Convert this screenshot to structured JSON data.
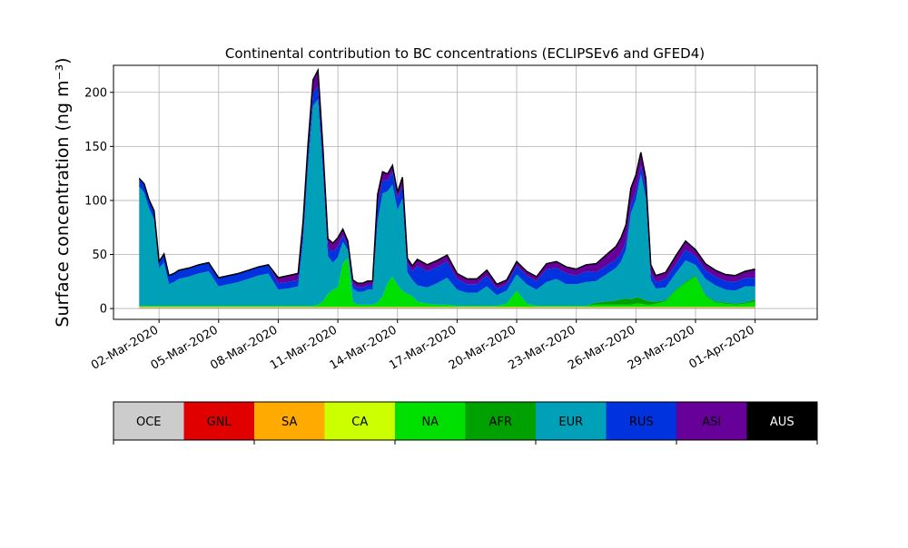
{
  "chart_data": {
    "type": "area",
    "title": "Continental contribution to BC concentrations (ECLIPSEv6 and GFED4)",
    "ylabel": "Surface concentration (ng m⁻³)",
    "xlabel": "",
    "grid": true,
    "ylim": [
      -10,
      225
    ],
    "xlim": [
      "2020-02-28 17:00",
      "2020-04-04 03:00"
    ],
    "yticks": [
      0,
      50,
      100,
      150,
      200
    ],
    "xticks": [
      {
        "date": "2020-03-02",
        "label": "02-Mar-2020"
      },
      {
        "date": "2020-03-05",
        "label": "05-Mar-2020"
      },
      {
        "date": "2020-03-08",
        "label": "08-Mar-2020"
      },
      {
        "date": "2020-03-11",
        "label": "11-Mar-2020"
      },
      {
        "date": "2020-03-14",
        "label": "14-Mar-2020"
      },
      {
        "date": "2020-03-17",
        "label": "17-Mar-2020"
      },
      {
        "date": "2020-03-20",
        "label": "20-Mar-2020"
      },
      {
        "date": "2020-03-23",
        "label": "23-Mar-2020"
      },
      {
        "date": "2020-03-26",
        "label": "26-Mar-2020"
      },
      {
        "date": "2020-03-29",
        "label": "29-Mar-2020"
      },
      {
        "date": "2020-04-01",
        "label": "01-Apr-2020"
      }
    ],
    "x": [
      "2020-03-01 00:00",
      "2020-03-01 06:00",
      "2020-03-01 12:00",
      "2020-03-01 18:00",
      "2020-03-02 00:00",
      "2020-03-02 06:00",
      "2020-03-02 12:00",
      "2020-03-02 18:00",
      "2020-03-03 00:00",
      "2020-03-03 12:00",
      "2020-03-04 00:00",
      "2020-03-04 12:00",
      "2020-03-05 00:00",
      "2020-03-05 12:00",
      "2020-03-06 00:00",
      "2020-03-06 12:00",
      "2020-03-07 00:00",
      "2020-03-07 12:00",
      "2020-03-08 00:00",
      "2020-03-08 12:00",
      "2020-03-09 00:00",
      "2020-03-09 06:00",
      "2020-03-09 12:00",
      "2020-03-09 18:00",
      "2020-03-10 00:00",
      "2020-03-10 06:00",
      "2020-03-10 12:00",
      "2020-03-10 18:00",
      "2020-03-11 00:00",
      "2020-03-11 06:00",
      "2020-03-11 12:00",
      "2020-03-11 18:00",
      "2020-03-12 00:00",
      "2020-03-12 06:00",
      "2020-03-12 12:00",
      "2020-03-12 18:00",
      "2020-03-13 00:00",
      "2020-03-13 06:00",
      "2020-03-13 12:00",
      "2020-03-13 18:00",
      "2020-03-14 00:00",
      "2020-03-14 06:00",
      "2020-03-14 12:00",
      "2020-03-14 18:00",
      "2020-03-15 00:00",
      "2020-03-15 12:00",
      "2020-03-16 00:00",
      "2020-03-16 12:00",
      "2020-03-17 00:00",
      "2020-03-17 12:00",
      "2020-03-18 00:00",
      "2020-03-18 12:00",
      "2020-03-19 00:00",
      "2020-03-19 12:00",
      "2020-03-20 00:00",
      "2020-03-20 12:00",
      "2020-03-21 00:00",
      "2020-03-21 12:00",
      "2020-03-22 00:00",
      "2020-03-22 12:00",
      "2020-03-23 00:00",
      "2020-03-23 12:00",
      "2020-03-24 00:00",
      "2020-03-24 12:00",
      "2020-03-25 00:00",
      "2020-03-25 06:00",
      "2020-03-25 12:00",
      "2020-03-25 18:00",
      "2020-03-26 00:00",
      "2020-03-26 06:00",
      "2020-03-26 12:00",
      "2020-03-26 18:00",
      "2020-03-27 00:00",
      "2020-03-27 12:00",
      "2020-03-28 00:00",
      "2020-03-28 12:00",
      "2020-03-29 00:00",
      "2020-03-29 12:00",
      "2020-03-30 00:00",
      "2020-03-30 12:00",
      "2020-03-31 00:00",
      "2020-03-31 12:00",
      "2020-04-01 00:00"
    ],
    "series": [
      {
        "name": "OCE",
        "color": "#cccccc",
        "values": [
          0.5,
          0.5,
          0.5,
          0.5,
          0.5,
          0.5,
          0.5,
          0.5,
          0.5,
          0.5,
          0.5,
          0.5,
          0.5,
          0.5,
          0.5,
          0.5,
          0.5,
          0.5,
          0.5,
          0.5,
          0.5,
          0.5,
          0.5,
          0.5,
          0.5,
          0.5,
          0.5,
          0.5,
          0.5,
          0.5,
          0.5,
          0.5,
          0.5,
          0.5,
          0.5,
          0.5,
          0.5,
          0.5,
          0.5,
          0.5,
          0.5,
          0.5,
          0.5,
          0.5,
          0.5,
          0.5,
          0.5,
          0.5,
          0.5,
          0.5,
          0.5,
          0.5,
          0.5,
          0.5,
          0.5,
          0.5,
          0.5,
          0.5,
          0.5,
          0.5,
          0.5,
          0.5,
          0.5,
          0.5,
          0.5,
          0.5,
          0.5,
          0.5,
          0.5,
          0.5,
          0.5,
          0.5,
          0.5,
          0.5,
          0.5,
          0.5,
          0.5,
          0.5,
          0.5,
          0.5,
          0.5,
          0.5,
          0.5
        ]
      },
      {
        "name": "GNL",
        "color": "#e00000",
        "values": [
          0.3,
          0.3,
          0.3,
          0.3,
          0.3,
          0.3,
          0.3,
          0.3,
          0.3,
          0.3,
          0.3,
          0.3,
          0.3,
          0.3,
          0.3,
          0.3,
          0.3,
          0.3,
          0.3,
          0.3,
          0.3,
          0.3,
          0.3,
          0.3,
          0.3,
          0.3,
          0.3,
          0.3,
          0.3,
          0.3,
          0.3,
          0.3,
          0.3,
          0.3,
          0.3,
          0.3,
          0.3,
          0.3,
          0.3,
          0.3,
          0.3,
          0.3,
          0.3,
          0.3,
          0.3,
          0.3,
          0.3,
          0.3,
          0.3,
          0.3,
          0.3,
          0.3,
          0.3,
          0.3,
          0.3,
          0.3,
          0.3,
          0.3,
          0.3,
          0.3,
          0.3,
          0.3,
          0.3,
          0.3,
          0.3,
          0.3,
          0.3,
          0.3,
          0.3,
          0.3,
          0.3,
          0.3,
          0.3,
          0.3,
          0.3,
          0.3,
          0.3,
          0.3,
          0.3,
          0.3,
          0.3,
          0.3,
          0.3
        ]
      },
      {
        "name": "SA",
        "color": "#ffaa00",
        "values": [
          0.2,
          0.2,
          0.2,
          0.2,
          0.2,
          0.2,
          0.2,
          0.2,
          0.2,
          0.2,
          0.2,
          0.2,
          0.2,
          0.2,
          0.2,
          0.2,
          0.2,
          0.2,
          0.2,
          0.2,
          0.2,
          0.2,
          0.2,
          0.2,
          0.2,
          0.2,
          0.2,
          0.2,
          0.2,
          0.2,
          0.2,
          0.2,
          0.2,
          0.2,
          0.2,
          0.2,
          0.2,
          0.2,
          0.2,
          0.2,
          0.2,
          0.2,
          0.2,
          0.2,
          0.2,
          0.2,
          0.2,
          0.2,
          0.2,
          0.2,
          0.2,
          0.2,
          0.2,
          0.2,
          0.2,
          0.2,
          0.2,
          0.2,
          0.2,
          0.2,
          0.2,
          0.2,
          0.2,
          0.2,
          0.2,
          0.2,
          0.2,
          0.2,
          0.2,
          0.2,
          0.2,
          0.2,
          0.2,
          0.2,
          0.2,
          0.2,
          0.2,
          0.2,
          0.2,
          0.2,
          0.2,
          0.2,
          0.2
        ]
      },
      {
        "name": "CA",
        "color": "#ccff00",
        "values": [
          0.5,
          0.5,
          0.5,
          0.5,
          0.5,
          0.5,
          0.5,
          0.5,
          0.5,
          0.5,
          0.5,
          0.5,
          0.5,
          0.5,
          0.5,
          0.5,
          0.5,
          0.5,
          0.5,
          0.5,
          0.5,
          0.5,
          0.5,
          0.5,
          0.5,
          0.5,
          0.5,
          0.5,
          0.5,
          0.5,
          0.5,
          0.5,
          0.5,
          0.5,
          0.5,
          0.5,
          0.5,
          0.5,
          0.5,
          0.5,
          0.5,
          0.5,
          0.5,
          0.5,
          0.5,
          0.5,
          0.5,
          0.5,
          0.5,
          0.5,
          0.5,
          0.5,
          0.5,
          0.5,
          0.5,
          0.5,
          0.5,
          0.5,
          0.5,
          0.5,
          0.5,
          0.5,
          0.5,
          0.5,
          0.5,
          0.5,
          0.5,
          0.5,
          0.5,
          0.5,
          0.5,
          0.5,
          0.5,
          0.5,
          0.5,
          0.5,
          0.5,
          0.5,
          0.5,
          0.5,
          0.5,
          0.5,
          0.5
        ]
      },
      {
        "name": "NA",
        "color": "#00e000",
        "values": [
          1,
          1,
          1,
          1,
          1,
          1,
          1,
          1,
          1,
          1,
          1,
          1,
          1,
          1,
          1,
          1,
          1,
          1,
          1,
          1,
          1,
          1,
          1,
          1,
          2,
          5,
          12,
          16,
          18,
          40,
          45,
          5,
          2,
          2,
          2,
          2,
          4,
          10,
          22,
          28,
          20,
          15,
          12,
          10,
          5,
          3,
          2,
          2,
          1,
          1,
          1,
          1,
          1,
          3,
          15,
          3,
          1,
          1,
          1,
          1,
          1,
          1,
          2,
          2,
          2,
          2,
          2,
          2,
          3,
          3,
          2,
          2,
          3,
          5,
          15,
          22,
          28,
          10,
          4,
          3,
          2,
          3,
          5
        ]
      },
      {
        "name": "AFR",
        "color": "#00a000",
        "values": [
          0,
          0,
          0,
          0,
          0,
          0,
          0,
          0,
          0,
          0,
          0,
          0,
          0,
          0,
          0,
          0,
          0,
          0,
          0,
          0,
          0,
          0,
          0,
          0,
          0,
          0,
          0,
          0,
          0,
          0,
          0,
          0,
          0,
          0,
          0,
          0,
          0,
          0,
          0,
          0,
          0,
          0,
          0,
          0,
          0,
          0,
          0,
          0,
          0,
          0,
          0,
          0,
          0,
          0,
          0,
          0,
          0,
          0,
          0,
          0,
          0,
          0,
          2,
          3,
          4,
          5,
          6,
          5,
          6,
          5,
          4,
          3,
          2,
          1,
          1,
          1,
          1,
          1,
          1,
          1,
          1,
          1,
          2
        ]
      },
      {
        "name": "EUR",
        "color": "#00a0b8",
        "values": [
          110,
          105,
          90,
          80,
          35,
          40,
          20,
          22,
          25,
          27,
          30,
          32,
          18,
          20,
          22,
          25,
          28,
          30,
          15,
          16,
          18,
          60,
          130,
          185,
          190,
          120,
          35,
          25,
          28,
          20,
          8,
          12,
          12,
          12,
          14,
          14,
          75,
          95,
          85,
          85,
          70,
          85,
          20,
          15,
          15,
          15,
          20,
          25,
          15,
          12,
          12,
          18,
          10,
          12,
          15,
          18,
          15,
          22,
          25,
          20,
          20,
          22,
          20,
          25,
          30,
          35,
          45,
          80,
          90,
          115,
          95,
          20,
          12,
          12,
          15,
          20,
          10,
          15,
          15,
          12,
          12,
          15,
          12
        ]
      },
      {
        "name": "RUS",
        "color": "#0033dd",
        "values": [
          8,
          8,
          8,
          8,
          6,
          8,
          8,
          8,
          8,
          8,
          8,
          8,
          8,
          8,
          8,
          8,
          8,
          8,
          6,
          6,
          6,
          10,
          10,
          12,
          12,
          10,
          8,
          10,
          10,
          6,
          4,
          4,
          4,
          4,
          4,
          4,
          15,
          12,
          10,
          12,
          10,
          12,
          8,
          8,
          18,
          15,
          15,
          15,
          10,
          8,
          8,
          10,
          6,
          6,
          8,
          8,
          8,
          12,
          10,
          10,
          8,
          10,
          8,
          8,
          8,
          8,
          8,
          8,
          8,
          8,
          8,
          6,
          6,
          8,
          8,
          10,
          8,
          8,
          8,
          8,
          8,
          8,
          8
        ]
      },
      {
        "name": "ASI",
        "color": "#660099",
        "values": [
          0,
          0,
          0,
          0,
          0,
          0,
          0,
          0,
          0,
          0,
          0,
          0,
          0,
          0,
          0,
          0,
          0,
          0,
          5,
          6,
          6,
          8,
          10,
          12,
          15,
          12,
          8,
          8,
          8,
          6,
          4,
          4,
          4,
          4,
          4,
          4,
          10,
          8,
          6,
          6,
          6,
          8,
          5,
          5,
          6,
          6,
          6,
          6,
          5,
          5,
          5,
          5,
          4,
          4,
          4,
          4,
          4,
          5,
          6,
          6,
          6,
          6,
          8,
          10,
          12,
          14,
          15,
          15,
          15,
          12,
          10,
          8,
          6,
          6,
          8,
          8,
          6,
          6,
          6,
          6,
          6,
          6,
          8
        ]
      },
      {
        "name": "AUS",
        "color": "#000000",
        "values": [
          0,
          0,
          0,
          0,
          0,
          0,
          0,
          0,
          0,
          0,
          0,
          0,
          0,
          0,
          0,
          0,
          0,
          0,
          0,
          0,
          0,
          0,
          0,
          0,
          0,
          0,
          0,
          0,
          0,
          0,
          0,
          0,
          0,
          0,
          0,
          0,
          0,
          0,
          0,
          0,
          0,
          0,
          0,
          0,
          0,
          0,
          0,
          0,
          0,
          0,
          0,
          0,
          0,
          0,
          0,
          0,
          0,
          0,
          0,
          0,
          0,
          0,
          0,
          0,
          0,
          0,
          0,
          0,
          0,
          0,
          0,
          0,
          0,
          0,
          0,
          0,
          0,
          0,
          0,
          0,
          0,
          0,
          0
        ]
      }
    ],
    "colorbar_labels": [
      "OCE",
      "GNL",
      "SA",
      "CA",
      "NA",
      "AFR",
      "EUR",
      "RUS",
      "ASI",
      "AUS"
    ]
  }
}
